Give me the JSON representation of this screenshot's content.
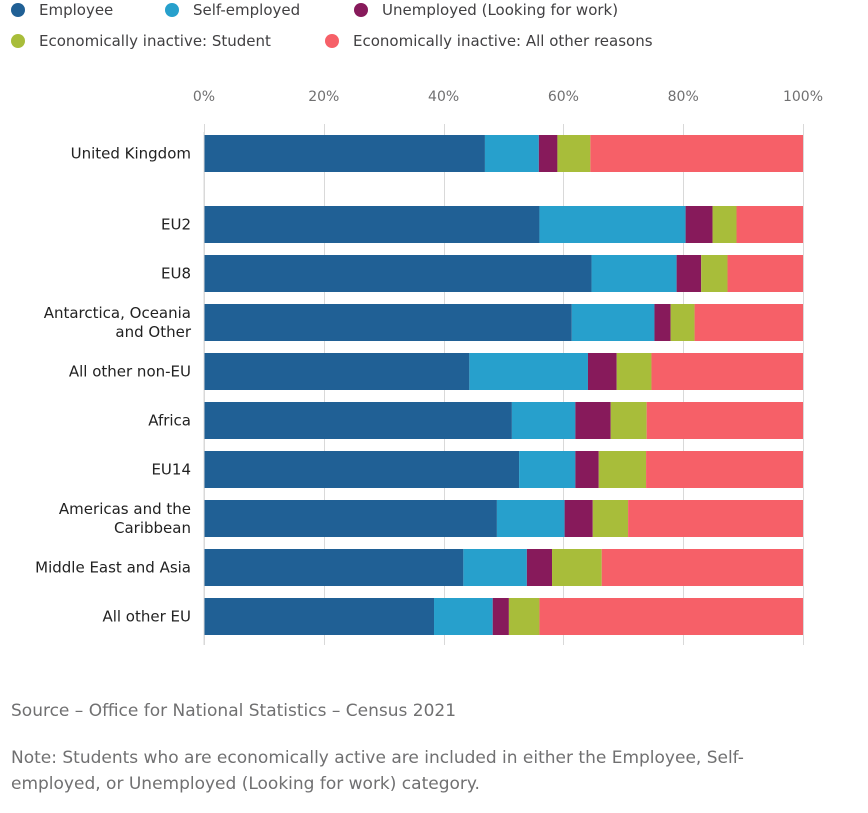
{
  "chart_data": {
    "type": "bar",
    "orientation": "horizontal",
    "stacked": true,
    "title": "",
    "xlabel": "",
    "ylabel": "",
    "xlim": [
      0,
      100
    ],
    "x_ticks": [
      "0%",
      "20%",
      "40%",
      "60%",
      "80%",
      "100%"
    ],
    "x_tick_values": [
      0,
      20,
      40,
      60,
      80,
      100
    ],
    "legend_position": "top-left",
    "categories": [
      "United Kingdom",
      "EU2",
      "EU8",
      "Antarctica, Oceania\nand Other",
      "All other non-EU",
      "Africa",
      "EU14",
      "Americas and the\nCaribbean",
      "Middle East and Asia",
      "All other EU"
    ],
    "series": [
      {
        "name": "Employee",
        "color": "#206095",
        "values": [
          46.9,
          56.0,
          64.7,
          61.4,
          44.3,
          51.4,
          52.6,
          48.9,
          43.3,
          38.4
        ]
      },
      {
        "name": "Self-employed",
        "color": "#27a0cc",
        "values": [
          9.0,
          24.4,
          14.2,
          13.8,
          19.8,
          10.6,
          9.4,
          11.3,
          10.6,
          9.8
        ]
      },
      {
        "name": "Unemployed (Looking for work)",
        "color": "#871a5b",
        "values": [
          3.1,
          4.5,
          4.1,
          2.7,
          4.8,
          5.9,
          3.9,
          4.7,
          4.2,
          2.7
        ]
      },
      {
        "name": "Economically inactive: Student",
        "color": "#a8bd3a",
        "values": [
          5.5,
          4.0,
          4.4,
          4.0,
          5.8,
          6.0,
          7.9,
          5.9,
          8.3,
          5.1
        ]
      },
      {
        "name": "Economically inactive: All other reasons",
        "color": "#f66068",
        "values": [
          35.5,
          11.1,
          12.6,
          18.1,
          25.3,
          26.1,
          26.2,
          29.2,
          33.6,
          44.0
        ]
      }
    ]
  },
  "footer": {
    "source": "Source – Office for National Statistics – Census 2021",
    "note": "Note: Students who are economically active are included in either the Employee, Self-employed, or Unemployed (Looking for work) category."
  }
}
